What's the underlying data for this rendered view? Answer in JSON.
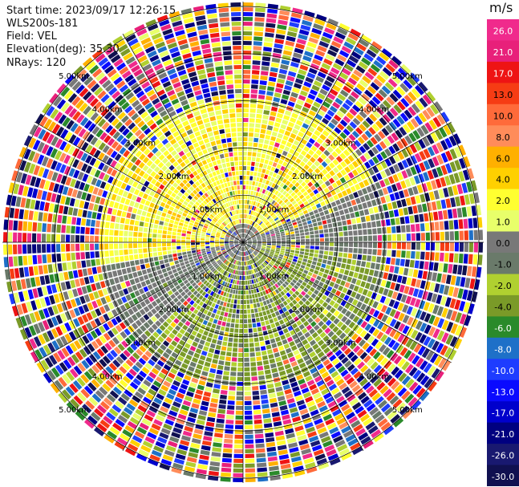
{
  "header": {
    "start_time": "Start time: 2023/09/17 12:26:15",
    "instrument": "WLS200s-181",
    "field": "Field: VEL",
    "elevation": "Elevation(deg): 35.30",
    "nrays": "NRays: 120"
  },
  "colorbar": {
    "units": "m/s",
    "ticks": [
      "26.0",
      "21.0",
      "17.0",
      "13.0",
      "10.0",
      "8.0",
      "6.0",
      "4.0",
      "2.0",
      "1.0",
      "0.0",
      "-1.0",
      "-2.0",
      "-4.0",
      "-6.0",
      "-8.0",
      "-10.0",
      "-13.0",
      "-17.0",
      "-21.0",
      "-26.0",
      "-30.0"
    ],
    "colors": [
      "#f02a8c",
      "#e8207a",
      "#ee1414",
      "#f63c14",
      "#ff6a3a",
      "#ff8c5a",
      "#ffb000",
      "#ffd000",
      "#ffff30",
      "#e8ff6a",
      "#787878",
      "#6a7a6a",
      "#b0d030",
      "#7a9a28",
      "#2a8a2a",
      "#1e70c8",
      "#1e3cff",
      "#0a0aff",
      "#0000cc",
      "#000080",
      "#191970",
      "#101050"
    ]
  },
  "chart_data": {
    "type": "ppi",
    "field": "VEL",
    "nrays": 120,
    "range_labels": [
      "1.00km",
      "2.00km",
      "3.00km",
      "4.00km",
      "5.00km"
    ],
    "range_rings_km": [
      1,
      2,
      3,
      4,
      5
    ],
    "max_range_km": 5.0,
    "spokes_deg": [
      0,
      30,
      60,
      90,
      120,
      150,
      180,
      210,
      240,
      270,
      300,
      330
    ],
    "vmin": -30.0,
    "vmax": 26.0
  }
}
